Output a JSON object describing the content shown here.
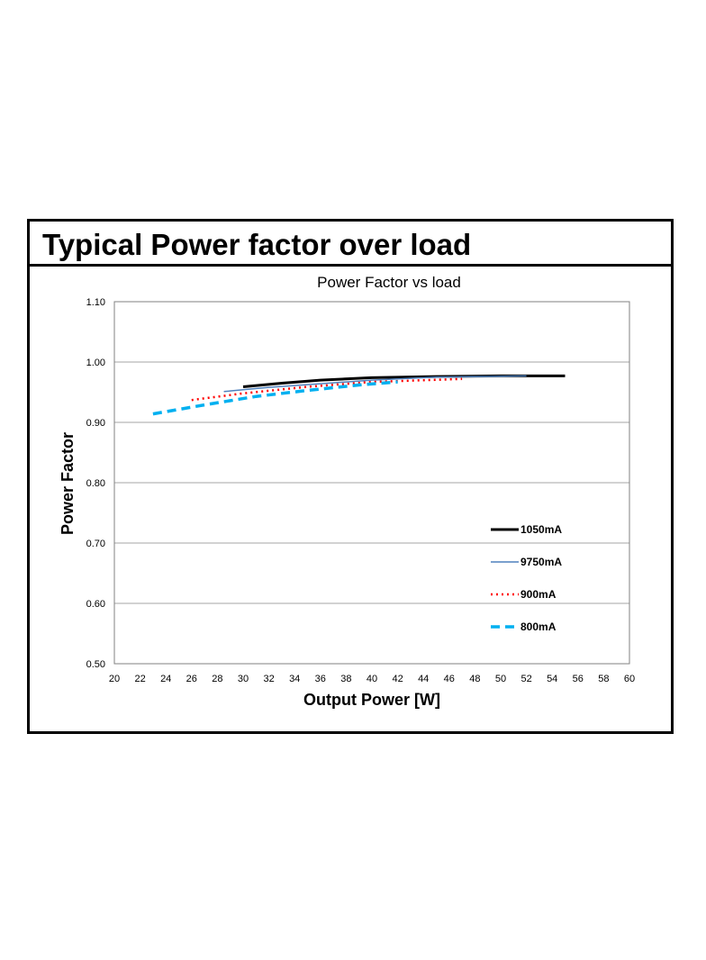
{
  "section_title": "Typical Power factor over load",
  "chart_data": {
    "type": "line",
    "title": "Power Factor vs load",
    "xlabel": "Output Power [W]",
    "ylabel": "Power Factor",
    "xlim": [
      20,
      60
    ],
    "ylim": [
      0.5,
      1.1
    ],
    "xticks": [
      "20",
      "22",
      "24",
      "26",
      "28",
      "30",
      "32",
      "34",
      "36",
      "38",
      "40",
      "42",
      "44",
      "46",
      "48",
      "50",
      "52",
      "54",
      "56",
      "58",
      "60"
    ],
    "yticks": [
      "0.50",
      "0.60",
      "0.70",
      "0.80",
      "0.90",
      "1.00",
      "1.10"
    ],
    "grid": true,
    "legend_position": "lower-right",
    "series": [
      {
        "name": "1050mA",
        "color": "#000000",
        "style": "solid-thick",
        "x": [
          30,
          33,
          36,
          40,
          45,
          50,
          55
        ],
        "y": [
          0.959,
          0.965,
          0.97,
          0.974,
          0.976,
          0.977,
          0.977
        ]
      },
      {
        "name": "9750mA",
        "color": "#4f81bd",
        "style": "solid-thin",
        "x": [
          28.5,
          32,
          36,
          40,
          45,
          52
        ],
        "y": [
          0.951,
          0.958,
          0.964,
          0.97,
          0.975,
          0.977
        ]
      },
      {
        "name": "900mA",
        "color": "#ff0000",
        "style": "dotted",
        "x": [
          26,
          30,
          35,
          40,
          47
        ],
        "y": [
          0.937,
          0.948,
          0.959,
          0.967,
          0.972
        ]
      },
      {
        "name": "800mA",
        "color": "#00b0f0",
        "style": "dashed",
        "x": [
          23,
          27,
          31,
          35,
          39,
          42
        ],
        "y": [
          0.914,
          0.929,
          0.943,
          0.953,
          0.962,
          0.967
        ]
      }
    ]
  }
}
